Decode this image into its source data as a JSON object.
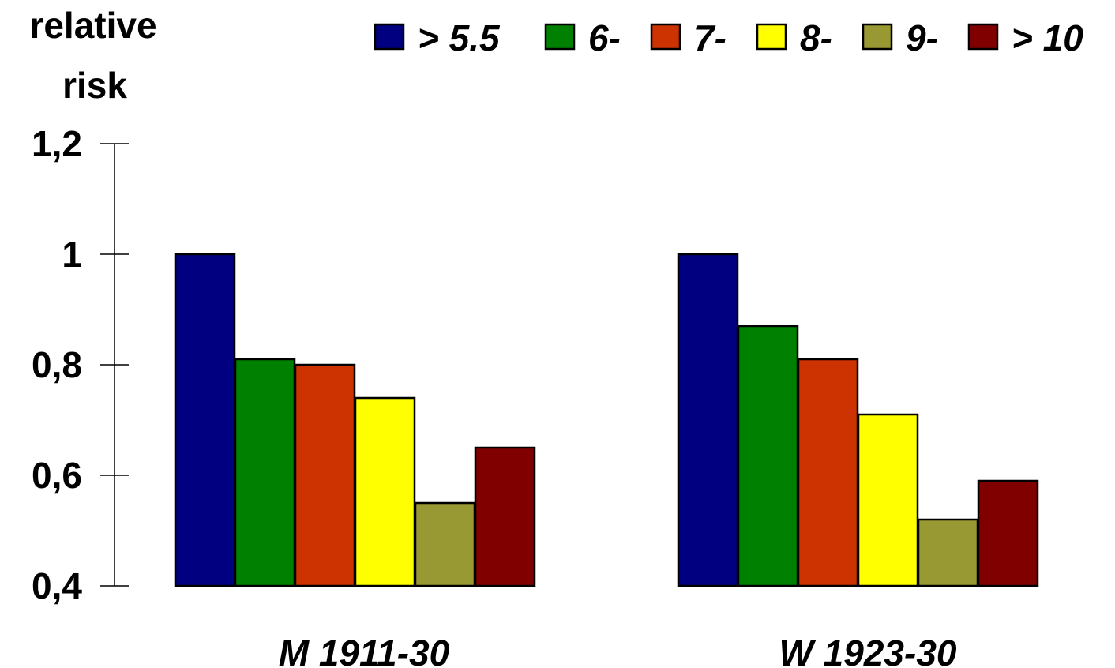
{
  "chart_data": {
    "type": "bar",
    "title": "",
    "ylabel_lines": [
      "relative",
      "risk"
    ],
    "xlabel": "",
    "ylim": [
      0.4,
      1.2
    ],
    "yticks": [
      {
        "value": 0.4,
        "label": "0,4"
      },
      {
        "value": 0.6,
        "label": "0,6"
      },
      {
        "value": 0.8,
        "label": "0,8"
      },
      {
        "value": 1.0,
        "label": "1"
      },
      {
        "value": 1.2,
        "label": "1,2"
      }
    ],
    "categories": [
      "M 1911-30",
      "W 1923-30"
    ],
    "legend_position": "top-right",
    "grid": false,
    "series": [
      {
        "name": "> 5.5",
        "color": "#000080",
        "values": [
          1.0,
          1.0
        ]
      },
      {
        "name": "6-",
        "color": "#008000",
        "values": [
          0.81,
          0.87
        ]
      },
      {
        "name": "7-",
        "color": "#CC3300",
        "values": [
          0.8,
          0.81
        ]
      },
      {
        "name": "8-",
        "color": "#FFFF00",
        "values": [
          0.74,
          0.71
        ]
      },
      {
        "name": "9-",
        "color": "#999933",
        "values": [
          0.55,
          0.52
        ]
      },
      {
        "name": "> 10",
        "color": "#800000",
        "values": [
          0.65,
          0.59
        ]
      }
    ]
  }
}
